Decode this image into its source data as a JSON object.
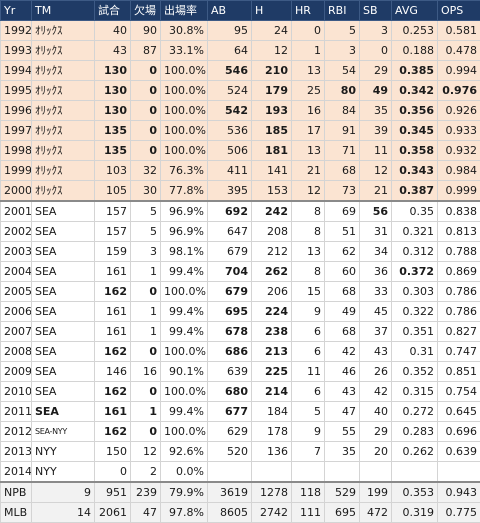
{
  "table": {
    "headers": [
      "Yr",
      "TM",
      "試合",
      "欠場",
      "出場率",
      "AB",
      "H",
      "HR",
      "RBI",
      "SB",
      "AVG",
      "OPS"
    ],
    "rows": [
      {
        "league": "npb",
        "cells": [
          "1992",
          "ｵﾘｯｸｽ",
          "40",
          "90",
          "30.8%",
          "95",
          "24",
          "0",
          "5",
          "3",
          "0.253",
          "0.581"
        ],
        "bold": []
      },
      {
        "league": "npb",
        "cells": [
          "1993",
          "ｵﾘｯｸｽ",
          "43",
          "87",
          "33.1%",
          "64",
          "12",
          "1",
          "3",
          "0",
          "0.188",
          "0.478"
        ],
        "bold": []
      },
      {
        "league": "npb",
        "cells": [
          "1994",
          "ｵﾘｯｸｽ",
          "130",
          "0",
          "100.0%",
          "546",
          "210",
          "13",
          "54",
          "29",
          "0.385",
          "0.994"
        ],
        "bold": [
          2,
          3,
          5,
          6,
          10
        ]
      },
      {
        "league": "npb",
        "cells": [
          "1995",
          "ｵﾘｯｸｽ",
          "130",
          "0",
          "100.0%",
          "524",
          "179",
          "25",
          "80",
          "49",
          "0.342",
          "0.976"
        ],
        "bold": [
          2,
          3,
          6,
          8,
          9,
          10,
          11
        ]
      },
      {
        "league": "npb",
        "cells": [
          "1996",
          "ｵﾘｯｸｽ",
          "130",
          "0",
          "100.0%",
          "542",
          "193",
          "16",
          "84",
          "35",
          "0.356",
          "0.926"
        ],
        "bold": [
          2,
          3,
          5,
          6,
          10
        ]
      },
      {
        "league": "npb",
        "cells": [
          "1997",
          "ｵﾘｯｸｽ",
          "135",
          "0",
          "100.0%",
          "536",
          "185",
          "17",
          "91",
          "39",
          "0.345",
          "0.933"
        ],
        "bold": [
          2,
          3,
          6,
          10
        ]
      },
      {
        "league": "npb",
        "cells": [
          "1998",
          "ｵﾘｯｸｽ",
          "135",
          "0",
          "100.0%",
          "506",
          "181",
          "13",
          "71",
          "11",
          "0.358",
          "0.932"
        ],
        "bold": [
          2,
          3,
          6,
          10
        ]
      },
      {
        "league": "npb",
        "cells": [
          "1999",
          "ｵﾘｯｸｽ",
          "103",
          "32",
          "76.3%",
          "411",
          "141",
          "21",
          "68",
          "12",
          "0.343",
          "0.984"
        ],
        "bold": [
          10
        ]
      },
      {
        "league": "npb",
        "cells": [
          "2000",
          "ｵﾘｯｸｽ",
          "105",
          "30",
          "77.8%",
          "395",
          "153",
          "12",
          "73",
          "21",
          "0.387",
          "0.999"
        ],
        "bold": [
          10
        ]
      },
      {
        "league": "mlb",
        "cells": [
          "2001",
          "SEA",
          "157",
          "5",
          "96.9%",
          "692",
          "242",
          "8",
          "69",
          "56",
          "0.35",
          "0.838"
        ],
        "bold": [
          5,
          6,
          9
        ]
      },
      {
        "league": "mlb",
        "cells": [
          "2002",
          "SEA",
          "157",
          "5",
          "96.9%",
          "647",
          "208",
          "8",
          "51",
          "31",
          "0.321",
          "0.813"
        ],
        "bold": []
      },
      {
        "league": "mlb",
        "cells": [
          "2003",
          "SEA",
          "159",
          "3",
          "98.1%",
          "679",
          "212",
          "13",
          "62",
          "34",
          "0.312",
          "0.788"
        ],
        "bold": []
      },
      {
        "league": "mlb",
        "cells": [
          "2004",
          "SEA",
          "161",
          "1",
          "99.4%",
          "704",
          "262",
          "8",
          "60",
          "36",
          "0.372",
          "0.869"
        ],
        "bold": [
          5,
          6,
          10
        ]
      },
      {
        "league": "mlb",
        "cells": [
          "2005",
          "SEA",
          "162",
          "0",
          "100.0%",
          "679",
          "206",
          "15",
          "68",
          "33",
          "0.303",
          "0.786"
        ],
        "bold": [
          2,
          3,
          5
        ]
      },
      {
        "league": "mlb",
        "cells": [
          "2006",
          "SEA",
          "161",
          "1",
          "99.4%",
          "695",
          "224",
          "9",
          "49",
          "45",
          "0.322",
          "0.786"
        ],
        "bold": [
          5,
          6
        ]
      },
      {
        "league": "mlb",
        "cells": [
          "2007",
          "SEA",
          "161",
          "1",
          "99.4%",
          "678",
          "238",
          "6",
          "68",
          "37",
          "0.351",
          "0.827"
        ],
        "bold": [
          5,
          6
        ]
      },
      {
        "league": "mlb",
        "cells": [
          "2008",
          "SEA",
          "162",
          "0",
          "100.0%",
          "686",
          "213",
          "6",
          "42",
          "43",
          "0.31",
          "0.747"
        ],
        "bold": [
          2,
          3,
          5,
          6
        ]
      },
      {
        "league": "mlb",
        "cells": [
          "2009",
          "SEA",
          "146",
          "16",
          "90.1%",
          "639",
          "225",
          "11",
          "46",
          "26",
          "0.352",
          "0.851"
        ],
        "bold": [
          6
        ]
      },
      {
        "league": "mlb",
        "cells": [
          "2010",
          "SEA",
          "162",
          "0",
          "100.0%",
          "680",
          "214",
          "6",
          "43",
          "42",
          "0.315",
          "0.754"
        ],
        "bold": [
          2,
          3,
          5,
          6
        ]
      },
      {
        "league": "mlb",
        "cells": [
          "2011",
          "SEA",
          "161",
          "1",
          "99.4%",
          "677",
          "184",
          "5",
          "47",
          "40",
          "0.272",
          "0.645"
        ],
        "bold": [
          1,
          2,
          3,
          5
        ]
      },
      {
        "league": "mlb",
        "cells": [
          "2012",
          "SEA-NYY",
          "162",
          "0",
          "100.0%",
          "629",
          "178",
          "9",
          "55",
          "29",
          "0.283",
          "0.696"
        ],
        "bold": [
          2,
          3
        ]
      },
      {
        "league": "mlb",
        "cells": [
          "2013",
          "NYY",
          "150",
          "12",
          "92.6%",
          "520",
          "136",
          "7",
          "35",
          "20",
          "0.262",
          "0.639"
        ],
        "bold": []
      },
      {
        "league": "mlb",
        "cells": [
          "2014",
          "NYY",
          "0",
          "2",
          "0.0%",
          "",
          "",
          "",
          "",
          "",
          "",
          ""
        ],
        "bold": []
      },
      {
        "league": "totals",
        "cells": [
          "NPB",
          "9",
          "951",
          "239",
          "79.9%",
          "3619",
          "1278",
          "118",
          "529",
          "199",
          "0.353",
          "0.943"
        ],
        "bold": []
      },
      {
        "league": "totals",
        "cells": [
          "MLB",
          "14",
          "2061",
          "47",
          "97.8%",
          "8605",
          "2742",
          "111",
          "695",
          "472",
          "0.319",
          "0.775"
        ],
        "bold": []
      }
    ]
  },
  "colors": {
    "header_bg": "#1f3b66",
    "npb_row_bg": "#fbe4d2",
    "mlb_row_bg": "#ffffff",
    "totals_row_bg": "#f2f2f2"
  }
}
